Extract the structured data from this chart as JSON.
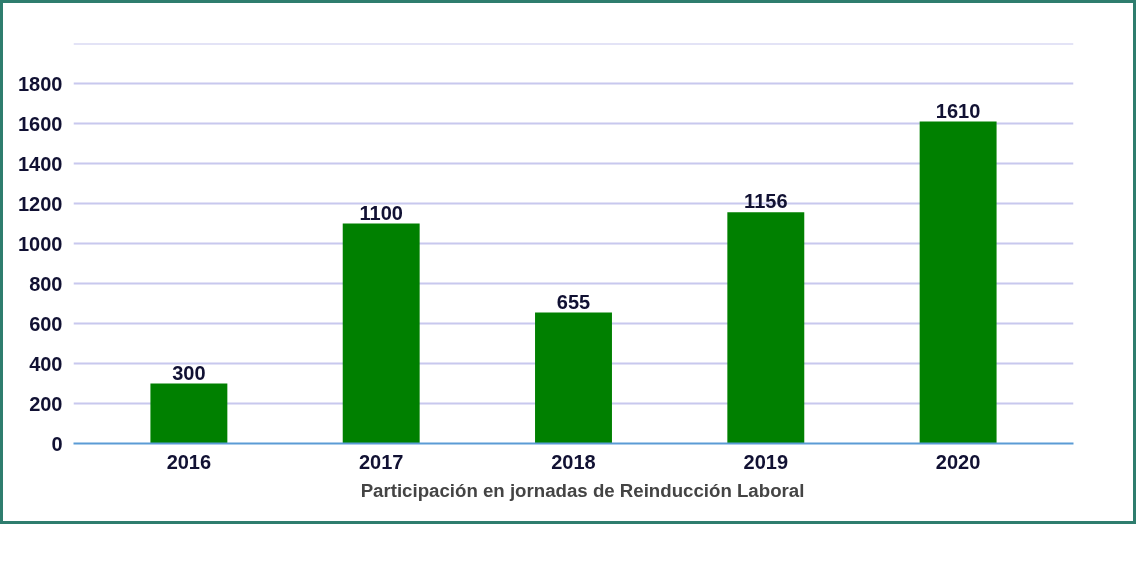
{
  "chart_data": {
    "type": "bar",
    "categories": [
      "2016",
      "2017",
      "2018",
      "2019",
      "2020"
    ],
    "series": [
      {
        "name": "Participación en jornadas de Reinducción Laboral",
        "color": "#008000",
        "values": [
          300,
          1100,
          655,
          1156,
          1610
        ]
      }
    ],
    "ylim": [
      0,
      2000
    ],
    "yticks": [
      0,
      200,
      400,
      600,
      800,
      1000,
      1200,
      1400,
      1600,
      1800,
      {
        "value": 2000,
        "label": null
      }
    ],
    "grid": "y",
    "legend": "bottom",
    "data_labels": true
  }
}
